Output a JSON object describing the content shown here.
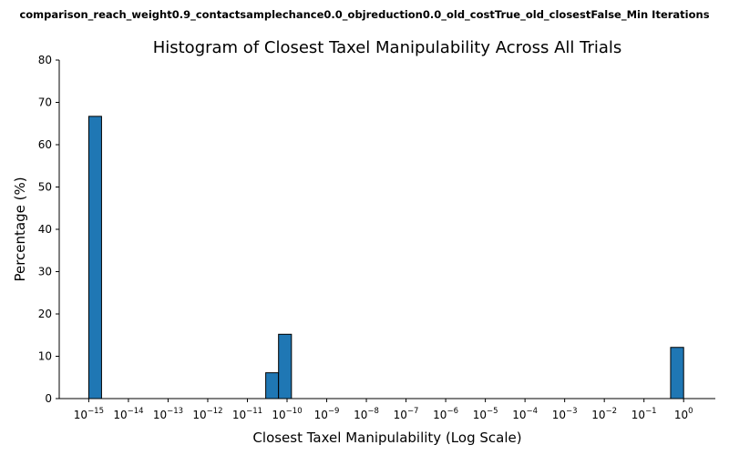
{
  "figure": {
    "suptitle": "comparison_reach_weight0.9_contactsamplechance0.0_objreduction0.0_old_costTrue_old_closestFalse_Min Iterations"
  },
  "chart_data": {
    "type": "bar",
    "title": "Histogram of Closest Taxel Manipulability Across All Trials",
    "xlabel": "Closest Taxel Manipulability (Log Scale)",
    "ylabel": "Percentage (%)",
    "x_scale": "log",
    "xlim": [
      1.8e-16,
      6.3
    ],
    "ylim": [
      0,
      80
    ],
    "y_ticks": [
      0,
      10,
      20,
      30,
      40,
      50,
      60,
      70,
      80
    ],
    "x_ticks": [
      {
        "value": 1e-15,
        "base": "10",
        "exp": "−15"
      },
      {
        "value": 1e-14,
        "base": "10",
        "exp": "−14"
      },
      {
        "value": 1e-13,
        "base": "10",
        "exp": "−13"
      },
      {
        "value": 1e-12,
        "base": "10",
        "exp": "−12"
      },
      {
        "value": 1e-11,
        "base": "10",
        "exp": "−11"
      },
      {
        "value": 1e-10,
        "base": "10",
        "exp": "−10"
      },
      {
        "value": 1e-09,
        "base": "10",
        "exp": "−9"
      },
      {
        "value": 1e-08,
        "base": "10",
        "exp": "−8"
      },
      {
        "value": 1e-07,
        "base": "10",
        "exp": "−7"
      },
      {
        "value": 1e-06,
        "base": "10",
        "exp": "−6"
      },
      {
        "value": 1e-05,
        "base": "10",
        "exp": "−5"
      },
      {
        "value": 0.0001,
        "base": "10",
        "exp": "−4"
      },
      {
        "value": 0.001,
        "base": "10",
        "exp": "−3"
      },
      {
        "value": 0.01,
        "base": "10",
        "exp": "−2"
      },
      {
        "value": 0.1,
        "base": "10",
        "exp": "−1"
      },
      {
        "value": 1,
        "base": "10",
        "exp": "0"
      }
    ],
    "bars": [
      {
        "x_start": 1e-15,
        "x_end": 2.1e-15,
        "value": 66.7
      },
      {
        "x_start": 2.9e-11,
        "x_end": 6.1e-11,
        "value": 6.1
      },
      {
        "x_start": 6.1e-11,
        "x_end": 1.29e-10,
        "value": 15.2
      },
      {
        "x_start": 0.47,
        "x_end": 1.0,
        "value": 12.1
      }
    ],
    "bar_color": "#1f77b4",
    "grid": false
  }
}
